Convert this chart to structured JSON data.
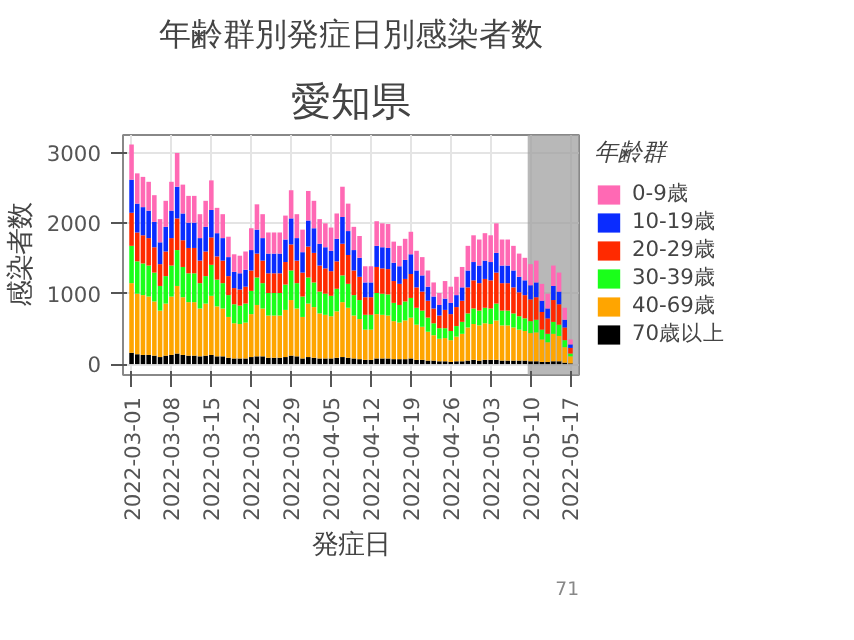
{
  "chart_data": {
    "type": "bar",
    "stacked": true,
    "title": "年齢群別発症日別感染者数",
    "subtitle": "愛知県",
    "xlabel": "発症日",
    "ylabel": "感染者数",
    "legend_title": "年齢群",
    "legend": "right",
    "grid": true,
    "x": [
      "2022-03-01",
      "2022-03-02",
      "2022-03-03",
      "2022-03-04",
      "2022-03-05",
      "2022-03-06",
      "2022-03-07",
      "2022-03-08",
      "2022-03-09",
      "2022-03-10",
      "2022-03-11",
      "2022-03-12",
      "2022-03-13",
      "2022-03-14",
      "2022-03-15",
      "2022-03-16",
      "2022-03-17",
      "2022-03-18",
      "2022-03-19",
      "2022-03-20",
      "2022-03-21",
      "2022-03-22",
      "2022-03-23",
      "2022-03-24",
      "2022-03-25",
      "2022-03-26",
      "2022-03-27",
      "2022-03-28",
      "2022-03-29",
      "2022-03-30",
      "2022-03-31",
      "2022-04-01",
      "2022-04-02",
      "2022-04-03",
      "2022-04-04",
      "2022-04-05",
      "2022-04-06",
      "2022-04-07",
      "2022-04-08",
      "2022-04-09",
      "2022-04-10",
      "2022-04-11",
      "2022-04-12",
      "2022-04-13",
      "2022-04-14",
      "2022-04-15",
      "2022-04-16",
      "2022-04-17",
      "2022-04-18",
      "2022-04-19",
      "2022-04-20",
      "2022-04-21",
      "2022-04-22",
      "2022-04-23",
      "2022-04-24",
      "2022-04-25",
      "2022-04-26",
      "2022-04-27",
      "2022-04-28",
      "2022-04-29",
      "2022-04-30",
      "2022-05-01",
      "2022-05-02",
      "2022-05-03",
      "2022-05-04",
      "2022-05-05",
      "2022-05-06",
      "2022-05-07",
      "2022-05-08",
      "2022-05-09",
      "2022-05-10",
      "2022-05-11",
      "2022-05-12",
      "2022-05-13",
      "2022-05-14",
      "2022-05-15",
      "2022-05-16",
      "2022-05-17"
    ],
    "xlim": [
      "2022-02-27T12:00",
      "2022-05-18T12:00"
    ],
    "xticks": [
      "2022-03-01",
      "2022-03-08",
      "2022-03-15",
      "2022-03-22",
      "2022-03-29",
      "2022-04-05",
      "2022-04-12",
      "2022-04-19",
      "2022-04-26",
      "2022-05-03",
      "2022-05-10",
      "2022-05-17"
    ],
    "ylim": [
      -155,
      3255
    ],
    "yticks": [
      0,
      1000,
      2000,
      3000
    ],
    "series": [
      {
        "name": "70歳以上",
        "color": "#000000",
        "values": [
          160,
          140,
          130,
          130,
          120,
          100,
          120,
          130,
          150,
          130,
          120,
          120,
          110,
          120,
          130,
          110,
          110,
          90,
          80,
          80,
          80,
          100,
          110,
          110,
          90,
          90,
          90,
          100,
          120,
          110,
          80,
          100,
          90,
          80,
          80,
          80,
          90,
          100,
          90,
          80,
          70,
          60,
          60,
          80,
          80,
          80,
          70,
          70,
          70,
          80,
          60,
          60,
          50,
          50,
          40,
          40,
          30,
          40,
          40,
          50,
          60,
          50,
          60,
          60,
          60,
          50,
          50,
          50,
          50,
          50,
          40,
          40,
          30,
          30,
          40,
          40,
          20,
          10
        ]
      },
      {
        "name": "40-69歳",
        "color": "#ffa500",
        "values": [
          990,
          860,
          850,
          830,
          770,
          660,
          740,
          830,
          960,
          820,
          760,
          760,
          680,
          740,
          840,
          710,
          680,
          580,
          500,
          490,
          510,
          610,
          730,
          680,
          600,
          600,
          600,
          670,
          790,
          680,
          590,
          760,
          720,
          640,
          620,
          600,
          660,
          780,
          710,
          610,
          570,
          430,
          430,
          630,
          620,
          610,
          540,
          520,
          550,
          580,
          500,
          470,
          410,
          360,
          320,
          330,
          310,
          350,
          390,
          470,
          510,
          500,
          520,
          510,
          560,
          500,
          500,
          470,
          440,
          420,
          400,
          410,
          320,
          280,
          390,
          360,
          220,
          100
        ]
      },
      {
        "name": "30-39歳",
        "color": "#1aff1a",
        "values": [
          530,
          460,
          450,
          440,
          410,
          350,
          390,
          440,
          510,
          430,
          410,
          410,
          360,
          390,
          440,
          380,
          360,
          310,
          270,
          260,
          270,
          330,
          390,
          360,
          320,
          320,
          320,
          360,
          420,
          360,
          290,
          370,
          350,
          310,
          300,
          290,
          320,
          380,
          340,
          290,
          270,
          210,
          210,
          300,
          300,
          300,
          260,
          250,
          270,
          280,
          240,
          230,
          200,
          170,
          150,
          140,
          130,
          150,
          170,
          200,
          220,
          210,
          220,
          220,
          240,
          210,
          210,
          200,
          190,
          180,
          170,
          180,
          140,
          120,
          170,
          160,
          100,
          40
        ]
      },
      {
        "name": "20-29歳",
        "color": "#ff2a00",
        "values": [
          470,
          410,
          400,
          390,
          360,
          310,
          350,
          390,
          450,
          380,
          360,
          360,
          320,
          350,
          390,
          330,
          320,
          270,
          230,
          230,
          240,
          290,
          340,
          320,
          280,
          280,
          280,
          320,
          370,
          320,
          340,
          440,
          420,
          370,
          360,
          350,
          390,
          450,
          410,
          350,
          330,
          250,
          250,
          370,
          360,
          360,
          310,
          300,
          320,
          340,
          290,
          270,
          240,
          210,
          180,
          260,
          240,
          270,
          300,
          370,
          400,
          390,
          410,
          400,
          440,
          390,
          390,
          370,
          340,
          330,
          310,
          320,
          250,
          220,
          310,
          290,
          180,
          80
        ]
      },
      {
        "name": "10-19歳",
        "color": "#0a2cff",
        "values": [
          470,
          410,
          400,
          390,
          360,
          310,
          350,
          390,
          450,
          380,
          360,
          360,
          320,
          350,
          390,
          330,
          320,
          270,
          230,
          230,
          240,
          290,
          340,
          320,
          280,
          280,
          280,
          320,
          370,
          320,
          290,
          370,
          350,
          310,
          300,
          290,
          320,
          380,
          340,
          290,
          270,
          210,
          210,
          300,
          300,
          300,
          260,
          250,
          270,
          280,
          240,
          230,
          200,
          170,
          150,
          160,
          160,
          170,
          190,
          240,
          260,
          250,
          260,
          260,
          280,
          250,
          250,
          240,
          220,
          210,
          200,
          210,
          160,
          140,
          200,
          180,
          110,
          50
        ]
      },
      {
        "name": "0-9歳",
        "color": "#ff69b4",
        "values": [
          500,
          430,
          430,
          410,
          380,
          330,
          370,
          410,
          480,
          410,
          380,
          380,
          340,
          370,
          420,
          360,
          340,
          290,
          250,
          250,
          260,
          310,
          360,
          340,
          300,
          300,
          300,
          340,
          400,
          340,
          320,
          420,
          390,
          350,
          340,
          330,
          360,
          430,
          390,
          330,
          310,
          230,
          230,
          350,
          340,
          340,
          300,
          290,
          300,
          320,
          280,
          260,
          230,
          200,
          170,
          250,
          230,
          260,
          290,
          350,
          380,
          370,
          390,
          380,
          420,
          370,
          370,
          350,
          330,
          320,
          300,
          310,
          240,
          210,
          290,
          270,
          170,
          70
        ]
      }
    ],
    "bands": [
      {
        "axis": "x",
        "from": "2022-05-09T12:00",
        "to": "2022-05-18T12:00",
        "color": "#a0a0a0"
      }
    ],
    "annotations": [
      "71"
    ]
  }
}
